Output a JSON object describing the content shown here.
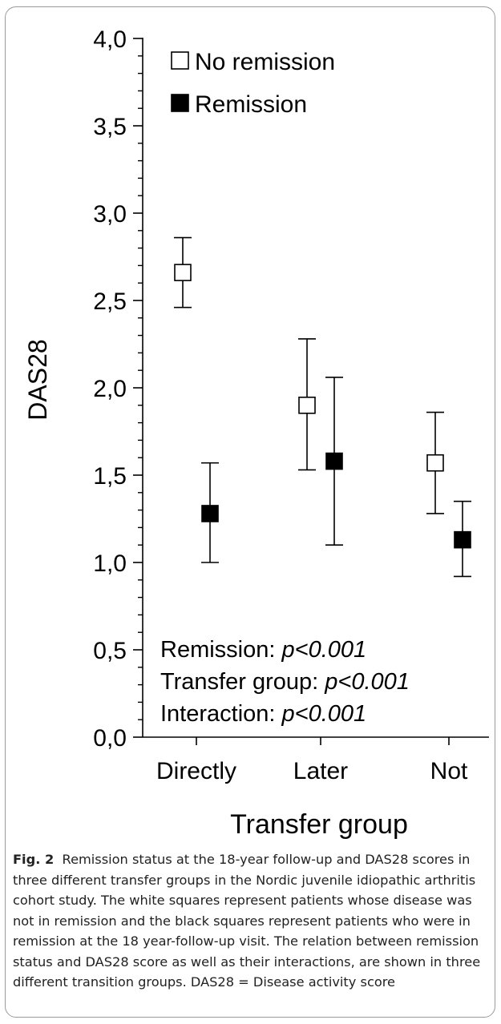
{
  "chart_data": {
    "type": "scatter",
    "ylabel": "DAS28",
    "xlabel": "Transfer group",
    "ylim": [
      0,
      4
    ],
    "yticks": [
      "0,0",
      "0,5",
      "1,0",
      "1,5",
      "2,0",
      "2,5",
      "3,0",
      "3,5",
      "4,0"
    ],
    "categories": [
      "Directly",
      "Later",
      "Not"
    ],
    "legend_position": "top-left",
    "series": [
      {
        "name": "No remission",
        "marker": "open-square",
        "color": "#ffffff",
        "points": [
          {
            "category": "Directly",
            "mean": 2.66,
            "lower": 2.46,
            "upper": 2.86
          },
          {
            "category": "Later",
            "mean": 1.9,
            "lower": 1.53,
            "upper": 2.28
          },
          {
            "category": "Not",
            "mean": 1.57,
            "lower": 1.28,
            "upper": 1.86
          }
        ]
      },
      {
        "name": "Remission",
        "marker": "filled-square",
        "color": "#000000",
        "points": [
          {
            "category": "Directly",
            "mean": 1.28,
            "lower": 1.0,
            "upper": 1.57
          },
          {
            "category": "Later",
            "mean": 1.58,
            "lower": 1.1,
            "upper": 2.06
          },
          {
            "category": "Not",
            "mean": 1.13,
            "lower": 0.92,
            "upper": 1.35
          }
        ]
      }
    ],
    "annotations": [
      {
        "label": "Remission: ",
        "value": "p<0.001"
      },
      {
        "label": "Transfer group: ",
        "value": "p<0.001"
      },
      {
        "label": "Interaction: ",
        "value": "p<0.001"
      }
    ]
  },
  "caption": {
    "label": "Fig. 2",
    "text": "Remission status at the 18-year follow-up and DAS28 scores in three different transfer groups in the Nordic juvenile idiopathic arthritis cohort study. The white squares represent patients whose disease was not in remission and the black squares represent patients who were in remission at the 18 year-follow-up visit. The relation between remission status and DAS28 score as well as their interactions, are shown in three different transition groups. DAS28 = Disease activity score"
  }
}
